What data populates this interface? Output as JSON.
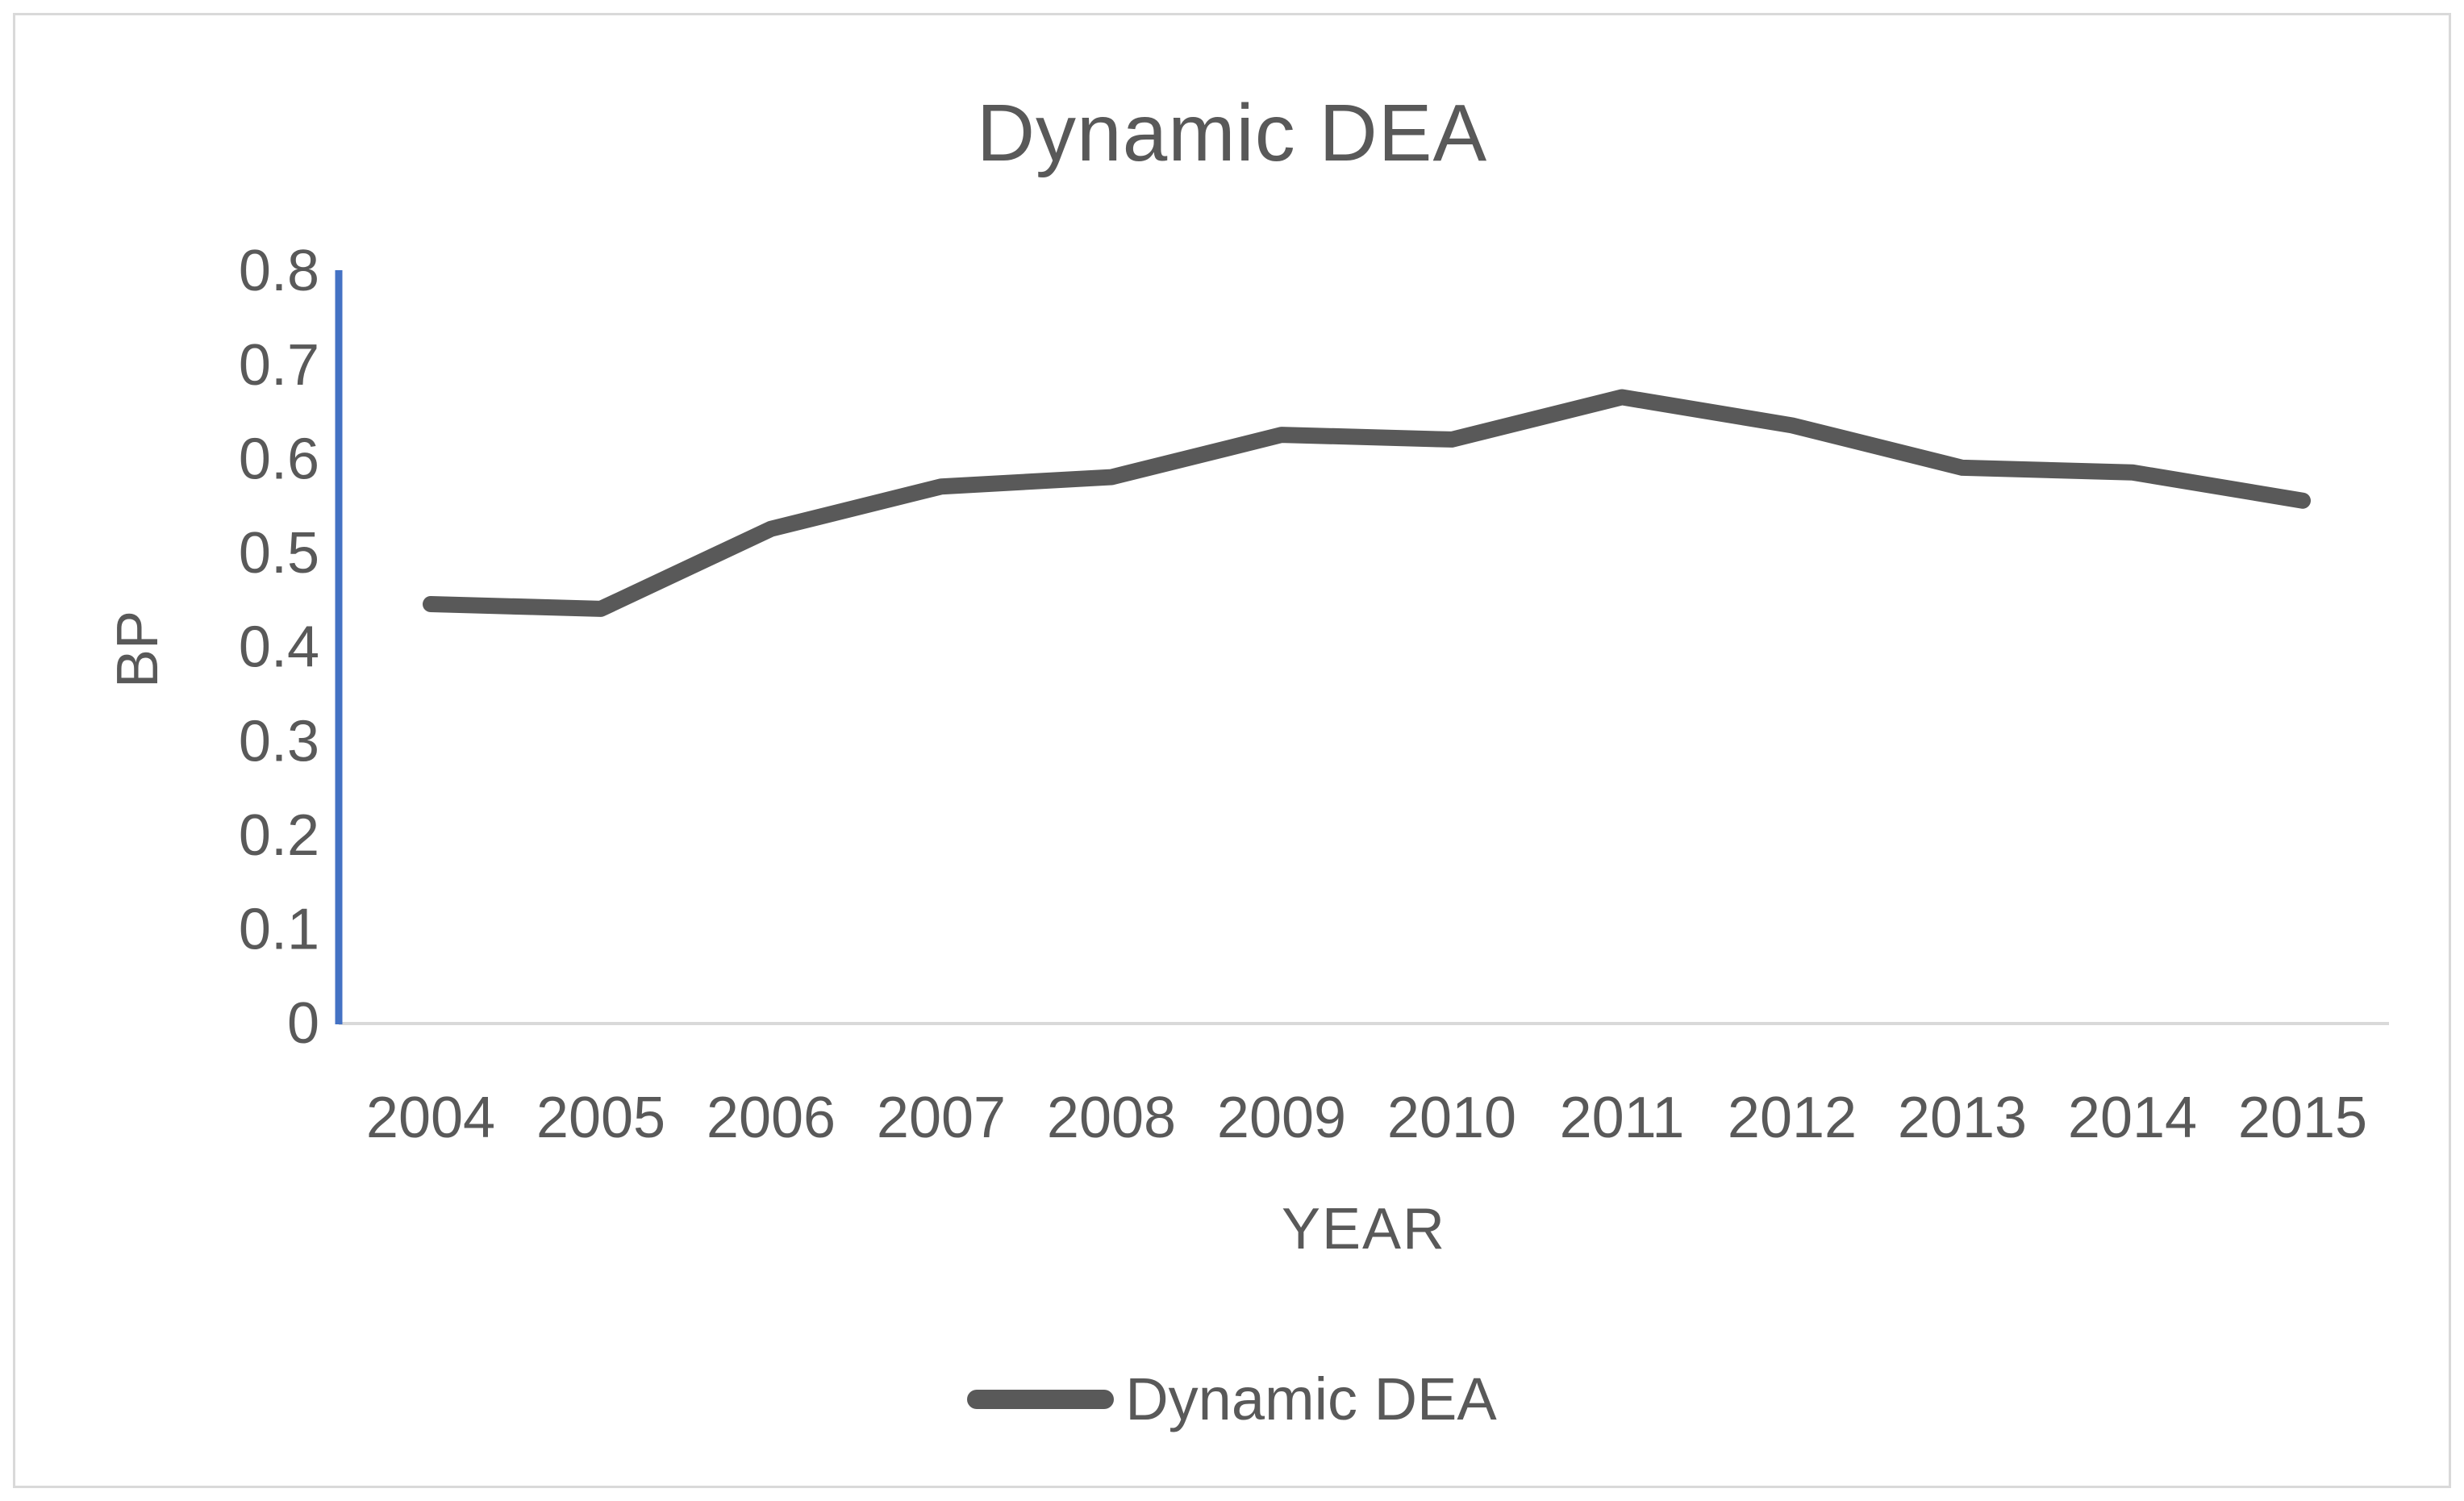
{
  "page": {
    "background": "#ffffff",
    "frame_border_color": "#d9d9d9"
  },
  "chart_data": {
    "type": "line",
    "title": "Dynamic DEA",
    "xlabel": "YEAR",
    "ylabel": "BP",
    "categories": [
      "2004",
      "2005",
      "2006",
      "2007",
      "2008",
      "2009",
      "2010",
      "2011",
      "2012",
      "2013",
      "2014",
      "2015"
    ],
    "series": [
      {
        "name": "Dynamic DEA",
        "values": [
          0.445,
          0.44,
          0.525,
          0.57,
          0.58,
          0.625,
          0.62,
          0.665,
          0.635,
          0.59,
          0.585,
          0.555
        ]
      }
    ],
    "ylim": [
      0,
      0.8
    ],
    "ytick_step": 0.1,
    "ytick_labels": [
      "0",
      "0.1",
      "0.2",
      "0.3",
      "0.4",
      "0.5",
      "0.6",
      "0.7",
      "0.8"
    ],
    "grid": false,
    "legend_position": "bottom-center",
    "colors": {
      "series_line": "#595959",
      "y_axis_line": "#4472c4",
      "x_axis_line": "#d9d9d9",
      "tick_text": "#595959",
      "title_text": "#595959"
    }
  }
}
